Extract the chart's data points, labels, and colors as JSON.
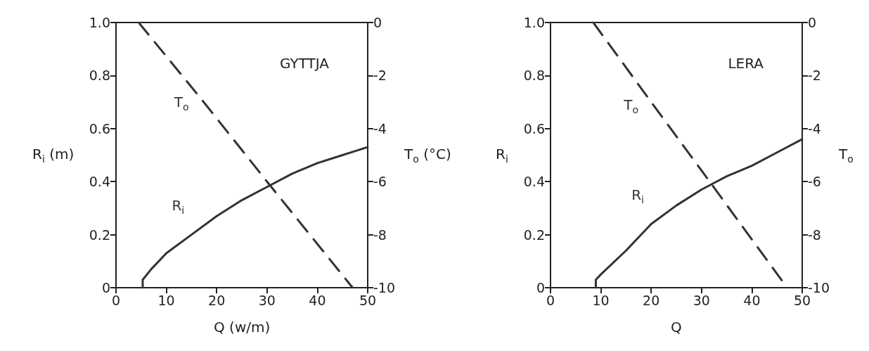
{
  "chart_data": [
    {
      "type": "line",
      "annotations": [
        "GYTTJA"
      ],
      "xlabel": "Q (w/m)",
      "ylabel": "R$_{i}$ (m)",
      "y2label": "T$_{o}$ (°C)",
      "xlim": [
        0,
        50
      ],
      "xticks": [
        0,
        10,
        20,
        30,
        40,
        50
      ],
      "ylim": [
        0,
        1
      ],
      "yticks": [
        0,
        0.2,
        0.4,
        0.6,
        0.8,
        {
          "value": 1,
          "label": "1.0"
        }
      ],
      "y2lim": [
        -10,
        0
      ],
      "y2ticks": [
        -10,
        -8,
        -6,
        -4,
        -2,
        0
      ],
      "grid": false,
      "legend": false,
      "marker": "none",
      "series": [
        {
          "name": "R$_{i}$",
          "color": "#333333",
          "line_style": "solid",
          "x": [
            5.3,
            5.3,
            7,
            10,
            15,
            20,
            25,
            30,
            35,
            40,
            45,
            50
          ],
          "values": [
            0,
            0.03,
            0.07,
            0.13,
            0.2,
            0.27,
            0.33,
            0.38,
            0.43,
            0.47,
            0.5,
            0.53
          ]
        },
        {
          "name": "T$_{o}$",
          "color": "#333333",
          "line_style": "dashed",
          "axis": "y2",
          "x": [
            4.5,
            17,
            30,
            47
          ],
          "values": [
            0,
            -2.9,
            -6.0,
            -10
          ]
        }
      ]
    },
    {
      "type": "line",
      "annotations": [
        "LERA"
      ],
      "xlabel": "Q",
      "ylabel": "R$_{i}$",
      "y2label": "T$_{o}$",
      "xlim": [
        0,
        50
      ],
      "xticks": [
        0,
        10,
        20,
        30,
        40,
        50
      ],
      "ylim": [
        0,
        1
      ],
      "yticks": [
        0,
        0.2,
        0.4,
        0.6,
        0.8,
        {
          "value": 1,
          "label": "1.0"
        }
      ],
      "y2lim": [
        -10,
        0
      ],
      "y2ticks": [
        -10,
        -8,
        -6,
        -4,
        -2,
        0
      ],
      "grid": false,
      "legend": false,
      "marker": "none",
      "series": [
        {
          "name": "R$_{i}$",
          "color": "#333333",
          "line_style": "solid",
          "x": [
            9,
            9,
            10,
            15,
            20,
            25,
            30,
            35,
            40,
            45,
            50
          ],
          "values": [
            0,
            0.03,
            0.05,
            0.14,
            0.24,
            0.31,
            0.37,
            0.42,
            0.46,
            0.51,
            0.56
          ]
        },
        {
          "name": "T$_{o}$",
          "color": "#333333",
          "line_style": "dashed",
          "axis": "y2",
          "x": [
            8.5,
            20,
            32,
            47
          ],
          "values": [
            0,
            -3.0,
            -6.1,
            -10
          ]
        }
      ]
    }
  ]
}
